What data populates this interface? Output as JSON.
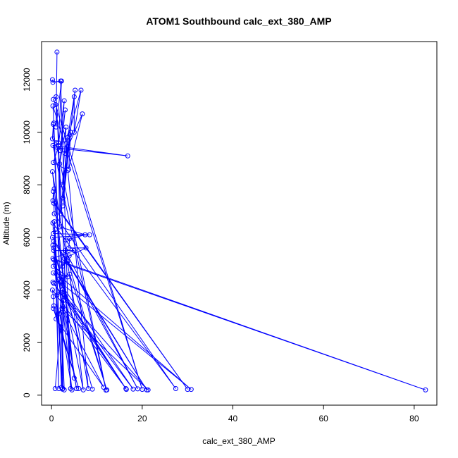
{
  "chart_data": {
    "type": "line",
    "title": "ATOM1 Southbound calc_ext_380_AMP",
    "xlabel": "calc_ext_380_AMP",
    "ylabel": "Altitude (m)",
    "xlim": [
      -2.2,
      85.0
    ],
    "ylim": [
      -380,
      13450
    ],
    "xticks": [
      0,
      20,
      40,
      60,
      80
    ],
    "yticks": [
      0,
      2000,
      4000,
      6000,
      8000,
      10000,
      12000
    ],
    "marker": "open-circle",
    "color": "#0000ff",
    "series": [
      {
        "points": [
          [
            0.2,
            12000
          ],
          [
            0.3,
            11900
          ],
          [
            2.0,
            11950
          ],
          [
            4.2,
            250
          ],
          [
            1.0,
            11350
          ],
          [
            0.4,
            11250
          ],
          [
            0.9,
            11050
          ],
          [
            20.0,
            220
          ],
          [
            0.3,
            11000
          ],
          [
            0.5,
            10350
          ],
          [
            2.8,
            200
          ],
          [
            0.4,
            10300
          ],
          [
            0.2,
            9750
          ],
          [
            1.0,
            9600
          ],
          [
            12.0,
            190
          ],
          [
            0.3,
            9500
          ],
          [
            16.8,
            9100
          ],
          [
            1.4,
            9400
          ],
          [
            0.4,
            8850
          ],
          [
            3.6,
            8550
          ],
          [
            8.1,
            250
          ],
          [
            0.2,
            8500
          ],
          [
            0.6,
            7850
          ],
          [
            5.0,
            650
          ],
          [
            0.4,
            7750
          ],
          [
            0.3,
            7400
          ],
          [
            30.0,
            220
          ],
          [
            0.5,
            7300
          ],
          [
            0.6,
            6900
          ],
          [
            27.4,
            250
          ],
          [
            0.3,
            6550
          ],
          [
            0.4,
            6150
          ],
          [
            8.4,
            6100
          ],
          [
            0.2,
            6000
          ],
          [
            21.0,
            200
          ],
          [
            0.5,
            5850
          ],
          [
            0.3,
            5700
          ],
          [
            9.0,
            230
          ],
          [
            0.5,
            5500
          ],
          [
            5.0,
            5500
          ],
          [
            0.3,
            5200
          ],
          [
            82.5,
            200
          ],
          [
            0.5,
            5150
          ],
          [
            0.4,
            4900
          ],
          [
            3.6,
            4500
          ],
          [
            0.4,
            4650
          ],
          [
            18.0,
            230
          ],
          [
            0.3,
            4300
          ],
          [
            0.5,
            4250
          ],
          [
            16.4,
            250
          ],
          [
            0.2,
            4000
          ],
          [
            0.4,
            3750
          ],
          [
            0.5,
            3400
          ],
          [
            6.0,
            250
          ],
          [
            0.4,
            3300
          ],
          [
            2.0,
            2600
          ],
          [
            0.8,
            250
          ]
        ]
      },
      {
        "points": [
          [
            1.2,
            13050
          ],
          [
            1.0,
            10200
          ],
          [
            2.2,
            11950
          ],
          [
            1.5,
            9500
          ],
          [
            2.8,
            11200
          ],
          [
            2.0,
            9300
          ],
          [
            3.0,
            10850
          ],
          [
            1.8,
            8800
          ],
          [
            3.2,
            10200
          ],
          [
            2.4,
            8000
          ],
          [
            4.0,
            9900
          ],
          [
            2.5,
            7500
          ],
          [
            5.2,
            11600
          ],
          [
            3.6,
            9800
          ],
          [
            6.5,
            11600
          ],
          [
            5.0,
            10000
          ],
          [
            5.0,
            11350
          ],
          [
            3.0,
            9200
          ],
          [
            6.8,
            10700
          ],
          [
            3.8,
            8600
          ],
          [
            4.2,
            10000
          ],
          [
            2.5,
            7200
          ],
          [
            3.5,
            9700
          ],
          [
            2.0,
            6900
          ],
          [
            1.5,
            9600
          ],
          [
            1.8,
            6400
          ],
          [
            7.4,
            6100
          ],
          [
            3.2,
            5900
          ],
          [
            4.0,
            5950
          ],
          [
            3.8,
            5600
          ],
          [
            7.6,
            5600
          ],
          [
            2.8,
            5200
          ],
          [
            3.9,
            5300
          ],
          [
            2.4,
            4900
          ],
          [
            3.4,
            5100
          ],
          [
            1.2,
            4700
          ],
          [
            2.6,
            4200
          ],
          [
            1.2,
            3800
          ],
          [
            2.2,
            3900
          ],
          [
            1.5,
            4400
          ],
          [
            5.5,
            250
          ],
          [
            2.6,
            3600
          ],
          [
            1.8,
            3100
          ],
          [
            4.5,
            200
          ],
          [
            2.4,
            3400
          ],
          [
            1.0,
            2900
          ],
          [
            11.5,
            300
          ],
          [
            2.3,
            3300
          ],
          [
            21.3,
            200
          ],
          [
            2.8,
            3800
          ],
          [
            16.5,
            220
          ],
          [
            2.4,
            4000
          ],
          [
            2.5,
            250
          ],
          [
            1.9,
            4300
          ],
          [
            30.8,
            220
          ],
          [
            2.0,
            4500
          ],
          [
            7.0,
            200
          ],
          [
            4.0,
            4600
          ],
          [
            12.2,
            200
          ],
          [
            3.6,
            5100
          ],
          [
            19.0,
            240
          ],
          [
            3.0,
            5500
          ],
          [
            2.2,
            300
          ],
          [
            0.8,
            6300
          ],
          [
            1.6,
            250
          ],
          [
            0.6,
            6600
          ],
          [
            2.4,
            230
          ],
          [
            0.5,
            5600
          ]
        ]
      }
    ]
  }
}
